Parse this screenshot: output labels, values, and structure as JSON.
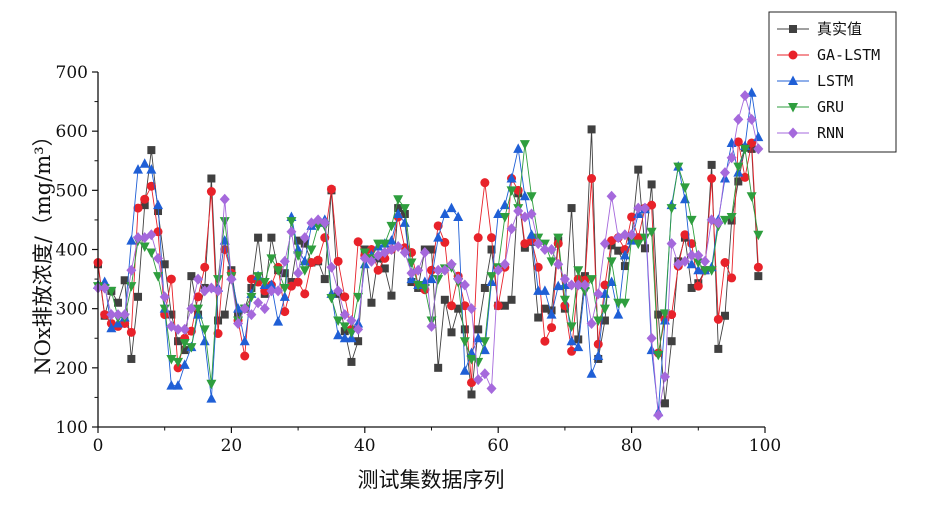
{
  "chart_data": {
    "type": "line",
    "title": "",
    "xlabel": "测试集数据序列",
    "ylabel": "NOx排放浓度/（mg/m³）",
    "xlim": [
      0,
      100
    ],
    "ylim": [
      100,
      700
    ],
    "xticks": [
      "0",
      "20",
      "40",
      "60",
      "80",
      "100"
    ],
    "yticks": [
      "100",
      "200",
      "300",
      "400",
      "500",
      "600",
      "700"
    ],
    "grid": false,
    "legend_position": "top-right",
    "x": [
      0,
      1,
      2,
      3,
      4,
      5,
      6,
      7,
      8,
      9,
      10,
      11,
      12,
      13,
      14,
      15,
      16,
      17,
      18,
      19,
      20,
      21,
      22,
      23,
      24,
      25,
      26,
      27,
      28,
      29,
      30,
      31,
      32,
      33,
      34,
      35,
      36,
      37,
      38,
      39,
      40,
      41,
      42,
      43,
      44,
      45,
      46,
      47,
      48,
      49,
      50,
      51,
      52,
      53,
      54,
      55,
      56,
      57,
      58,
      59,
      60,
      61,
      62,
      63,
      64,
      65,
      66,
      67,
      68,
      69,
      70,
      71,
      72,
      73,
      74,
      75,
      76,
      77,
      78,
      79,
      80,
      81,
      82,
      83,
      84,
      85,
      86,
      87,
      88,
      89,
      90,
      91,
      92,
      93,
      94,
      95,
      96,
      97,
      98,
      99
    ],
    "series": [
      {
        "name": "真实值",
        "color": "#404040",
        "marker": "square",
        "values": [
          375,
          288,
          330,
          310,
          348,
          215,
          320,
          475,
          568,
          465,
          375,
          290,
          245,
          230,
          355,
          290,
          335,
          520,
          280,
          290,
          365,
          290,
          300,
          335,
          420,
          325,
          420,
          365,
          360,
          345,
          415,
          410,
          378,
          380,
          350,
          500,
          325,
          262,
          210,
          245,
          400,
          310,
          385,
          368,
          322,
          470,
          460,
          345,
          335,
          400,
          400,
          200,
          315,
          260,
          300,
          265,
          155,
          265,
          335,
          400,
          305,
          305,
          315,
          495,
          403,
          413,
          285,
          300,
          297,
          415,
          300,
          470,
          248,
          355,
          603,
          215,
          280,
          407,
          398,
          372,
          420,
          535,
          402,
          510,
          290,
          140,
          245,
          380,
          420,
          335,
          343,
          365,
          543,
          232,
          288,
          449,
          515,
          572,
          570,
          355
        ]
      },
      {
        "name": "GA-LSTM",
        "color": "#e8222a",
        "marker": "circle",
        "values": [
          378,
          290,
          275,
          270,
          275,
          260,
          470,
          485,
          507,
          430,
          290,
          350,
          200,
          250,
          262,
          320,
          370,
          498,
          258,
          400,
          360,
          280,
          220,
          350,
          345,
          330,
          340,
          370,
          295,
          338,
          345,
          325,
          378,
          382,
          420,
          502,
          380,
          320,
          265,
          413,
          390,
          400,
          365,
          385,
          400,
          455,
          403,
          395,
          340,
          332,
          365,
          440,
          412,
          305,
          355,
          305,
          175,
          420,
          513,
          420,
          305,
          370,
          520,
          500,
          410,
          415,
          370,
          245,
          268,
          410,
          305,
          228,
          350,
          348,
          520,
          240,
          340,
          415,
          420,
          400,
          455,
          420,
          470,
          475,
          225,
          282,
          290,
          372,
          425,
          410,
          338,
          365,
          520,
          282,
          378,
          352,
          582,
          522,
          580,
          370
        ]
      },
      {
        "name": "LSTM",
        "color": "#1f5fd6",
        "marker": "triangle",
        "values": [
          340,
          345,
          267,
          275,
          285,
          415,
          535,
          545,
          535,
          475,
          300,
          170,
          170,
          205,
          235,
          290,
          245,
          148,
          335,
          415,
          355,
          300,
          245,
          325,
          355,
          340,
          340,
          278,
          320,
          455,
          400,
          380,
          440,
          445,
          450,
          325,
          255,
          250,
          250,
          275,
          375,
          390,
          405,
          410,
          415,
          460,
          445,
          350,
          340,
          345,
          350,
          420,
          460,
          470,
          455,
          195,
          225,
          250,
          230,
          345,
          460,
          475,
          520,
          570,
          490,
          425,
          330,
          330,
          290,
          338,
          340,
          245,
          235,
          340,
          190,
          220,
          325,
          345,
          290,
          390,
          415,
          460,
          468,
          230,
          125,
          280,
          475,
          540,
          485,
          375,
          365,
          365,
          370,
          450,
          520,
          580,
          530,
          575,
          665,
          590
        ]
      },
      {
        "name": "GRU",
        "color": "#2e9e3e",
        "marker": "triangle-down",
        "values": [
          338,
          335,
          330,
          285,
          285,
          338,
          415,
          405,
          395,
          355,
          300,
          215,
          210,
          242,
          235,
          300,
          265,
          173,
          350,
          448,
          355,
          280,
          300,
          320,
          355,
          345,
          385,
          365,
          335,
          448,
          390,
          365,
          400,
          440,
          440,
          318,
          280,
          270,
          260,
          320,
          395,
          385,
          410,
          410,
          440,
          485,
          470,
          378,
          340,
          335,
          280,
          350,
          368,
          370,
          345,
          245,
          215,
          210,
          245,
          355,
          370,
          455,
          500,
          470,
          578,
          490,
          420,
          410,
          380,
          420,
          315,
          270,
          365,
          330,
          350,
          280,
          300,
          380,
          310,
          310,
          420,
          410,
          420,
          430,
          222,
          292,
          470,
          540,
          505,
          450,
          378,
          365,
          365,
          440,
          450,
          455,
          540,
          570,
          490,
          425
        ]
      },
      {
        "name": "RNN",
        "color": "#a569dc",
        "marker": "diamond",
        "values": [
          335,
          335,
          290,
          290,
          290,
          365,
          420,
          420,
          425,
          385,
          320,
          270,
          265,
          265,
          300,
          350,
          330,
          335,
          330,
          485,
          350,
          275,
          300,
          290,
          310,
          300,
          330,
          330,
          380,
          430,
          360,
          420,
          445,
          450,
          445,
          370,
          330,
          290,
          280,
          265,
          385,
          380,
          390,
          395,
          400,
          405,
          395,
          360,
          365,
          395,
          270,
          365,
          365,
          375,
          350,
          340,
          300,
          180,
          190,
          165,
          365,
          375,
          435,
          465,
          455,
          460,
          410,
          400,
          400,
          375,
          350,
          340,
          340,
          340,
          275,
          325,
          410,
          490,
          420,
          425,
          425,
          470,
          470,
          250,
          120,
          185,
          410,
          375,
          380,
          390,
          390,
          380,
          450,
          445,
          530,
          555,
          620,
          660,
          620,
          570
        ]
      }
    ]
  }
}
